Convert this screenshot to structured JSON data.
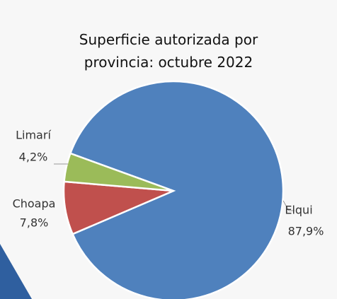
{
  "chart_data": {
    "type": "pie",
    "title": "Superficie autorizada por provincia: octubre 2022",
    "categories": [
      "Elqui",
      "Choapa",
      "Limarí"
    ],
    "values": [
      87.9,
      7.8,
      4.2
    ],
    "value_labels": [
      "87,9%",
      "7,8%",
      "4,2%"
    ],
    "colors": [
      "#4f81bd",
      "#c0504d",
      "#9bbb59"
    ]
  }
}
